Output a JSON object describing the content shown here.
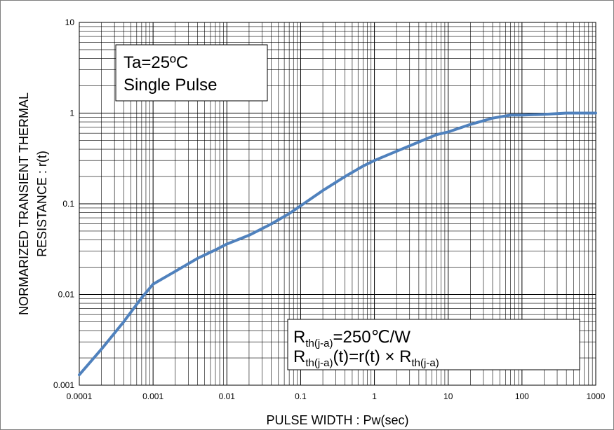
{
  "chart_data": {
    "type": "line",
    "title": "",
    "xlabel": "PULSE WIDTH : Pw(sec)",
    "ylabel_lines": [
      "NORMARIZED TRANSIENT THERMAL",
      "RESISTANCE : r(t)"
    ],
    "x_scale": "log",
    "y_scale": "log",
    "xlim": [
      0.0001,
      1000
    ],
    "ylim": [
      0.001,
      10
    ],
    "grid": true,
    "x_tick_labels": [
      "0.0001",
      "0.001",
      "0.01",
      "0.1",
      "1",
      "10",
      "100",
      "1000"
    ],
    "y_tick_labels": [
      "10",
      "1",
      "0.1",
      "0.01",
      "0.001"
    ],
    "series": [
      {
        "color": "#4f81bd",
        "x": [
          0.0001,
          0.0002,
          0.0004,
          0.0007,
          0.001,
          0.002,
          0.004,
          0.007,
          0.01,
          0.02,
          0.04,
          0.07,
          0.1,
          0.2,
          0.4,
          0.7,
          1,
          2,
          4,
          7,
          10,
          20,
          40,
          70,
          100,
          200,
          400,
          700,
          1000
        ],
        "y": [
          0.0013,
          0.0025,
          0.005,
          0.0092,
          0.013,
          0.018,
          0.025,
          0.031,
          0.036,
          0.045,
          0.06,
          0.078,
          0.095,
          0.14,
          0.2,
          0.26,
          0.3,
          0.38,
          0.48,
          0.58,
          0.62,
          0.75,
          0.88,
          0.95,
          0.95,
          0.97,
          1.0,
          1.0,
          1.0
        ]
      }
    ],
    "annotations": {
      "condition_box": [
        "Ta=25ºC",
        "Single Pulse"
      ],
      "rth_line1": {
        "main": "R",
        "sub": "th(j-a)",
        "rest": "=250℃/W"
      },
      "rth_line2": {
        "main": "R",
        "sub": "th(j-a)",
        "mid": "(t)=r(t) × R",
        "sub2": "th(j-a)"
      }
    }
  }
}
